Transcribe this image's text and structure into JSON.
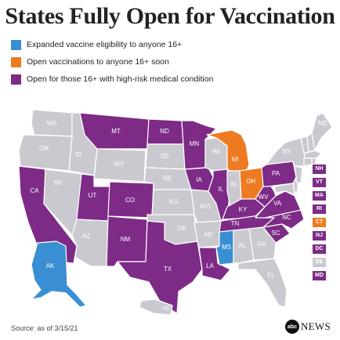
{
  "title": "States Fully Open for Vaccination",
  "colors": {
    "blue": "#3a8fd2",
    "orange": "#ee7a21",
    "purple": "#7d2b86",
    "gray": "#c9c9cf"
  },
  "legend": [
    {
      "label": "Expanded vaccine eligibility to anyone 16+",
      "color": "blue"
    },
    {
      "label": "Open vaccinations to anyone 16+ soon",
      "color": "orange"
    },
    {
      "label": "Open for those 16+ with high-risk medical condition",
      "color": "purple"
    }
  ],
  "states": [
    {
      "abbr": "WA",
      "status": "gray"
    },
    {
      "abbr": "OR",
      "status": "gray"
    },
    {
      "abbr": "CA",
      "status": "purple"
    },
    {
      "abbr": "ID",
      "status": "gray"
    },
    {
      "abbr": "NV",
      "status": "gray"
    },
    {
      "abbr": "MT",
      "status": "purple"
    },
    {
      "abbr": "WY",
      "status": "gray"
    },
    {
      "abbr": "UT",
      "status": "purple"
    },
    {
      "abbr": "AZ",
      "status": "gray"
    },
    {
      "abbr": "CO",
      "status": "purple"
    },
    {
      "abbr": "NM",
      "status": "purple"
    },
    {
      "abbr": "ND",
      "status": "purple"
    },
    {
      "abbr": "SD",
      "status": "gray"
    },
    {
      "abbr": "NE",
      "status": "gray"
    },
    {
      "abbr": "KS",
      "status": "gray"
    },
    {
      "abbr": "OK",
      "status": "gray"
    },
    {
      "abbr": "TX",
      "status": "purple"
    },
    {
      "abbr": "MN",
      "status": "purple"
    },
    {
      "abbr": "IA",
      "status": "purple"
    },
    {
      "abbr": "MO",
      "status": "gray"
    },
    {
      "abbr": "AR",
      "status": "gray"
    },
    {
      "abbr": "LA",
      "status": "purple"
    },
    {
      "abbr": "WI",
      "status": "gray"
    },
    {
      "abbr": "IL",
      "status": "purple"
    },
    {
      "abbr": "MI",
      "status": "orange"
    },
    {
      "abbr": "IN",
      "status": "gray"
    },
    {
      "abbr": "OH",
      "status": "orange"
    },
    {
      "abbr": "KY",
      "status": "purple"
    },
    {
      "abbr": "TN",
      "status": "purple"
    },
    {
      "abbr": "MS",
      "status": "blue"
    },
    {
      "abbr": "AL",
      "status": "gray"
    },
    {
      "abbr": "GA",
      "status": "gray"
    },
    {
      "abbr": "FL",
      "status": "gray"
    },
    {
      "abbr": "SC",
      "status": "purple"
    },
    {
      "abbr": "NC",
      "status": "purple"
    },
    {
      "abbr": "VA",
      "status": "purple"
    },
    {
      "abbr": "WV",
      "status": "purple"
    },
    {
      "abbr": "PA",
      "status": "purple"
    },
    {
      "abbr": "NY",
      "status": "gray"
    },
    {
      "abbr": "ME",
      "status": "gray"
    },
    {
      "abbr": "AK",
      "status": "blue"
    },
    {
      "abbr": "HI",
      "status": "gray"
    }
  ],
  "small_states": [
    {
      "abbr": "NH",
      "status": "purple"
    },
    {
      "abbr": "VT",
      "status": "purple"
    },
    {
      "abbr": "MA",
      "status": "purple"
    },
    {
      "abbr": "RI",
      "status": "purple"
    },
    {
      "abbr": "CT",
      "status": "orange"
    },
    {
      "abbr": "NJ",
      "status": "purple"
    },
    {
      "abbr": "DC",
      "status": "purple"
    },
    {
      "abbr": "DE",
      "status": "gray"
    },
    {
      "abbr": "MD",
      "status": "purple"
    }
  ],
  "source": "Source: as of 3/15/21",
  "brand": {
    "mark": "abc",
    "text": "NEWS"
  }
}
